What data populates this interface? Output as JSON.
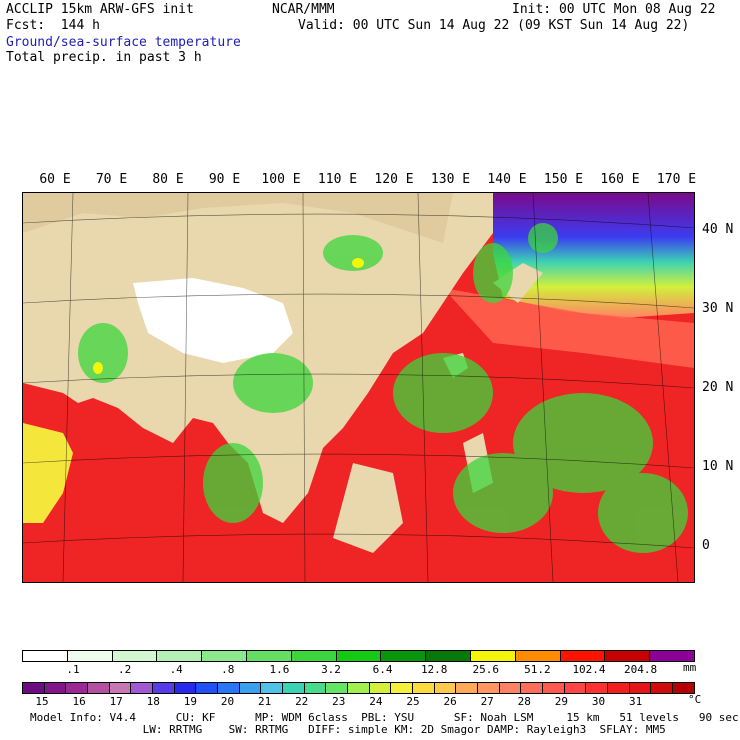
{
  "header": {
    "model_line": "ACCLIP 15km ARW-GFS init",
    "center": "NCAR/MMM",
    "init": "Init: 00 UTC Mon 08 Aug 22",
    "fcst": "Fcst:  144 h",
    "valid": "Valid: 00 UTC Sun 14 Aug 22 (09 KST Sun 14 Aug 22)",
    "field1": "Ground/sea-surface temperature",
    "field2": "Total precip. in past 3 h"
  },
  "axes": {
    "longitude_labels": [
      "60 E",
      "70 E",
      "80 E",
      "90 E",
      "100 E",
      "110 E",
      "120 E",
      "130 E",
      "140 E",
      "150 E",
      "160 E",
      "170 E"
    ],
    "latitude_labels": [
      "40 N",
      "30 N",
      "20 N",
      "10 N",
      "0"
    ]
  },
  "precip_scale": {
    "labels": [
      ".1",
      ".2",
      ".4",
      ".8",
      "1.6",
      "3.2",
      "6.4",
      "12.8",
      "25.6",
      "51.2",
      "102.4",
      "204.8"
    ],
    "unit": "mm",
    "colors": [
      "#ffffff",
      "#f0fbf0",
      "#d2f6d2",
      "#b4f0b4",
      "#8ce88c",
      "#64df64",
      "#3cd63c",
      "#14c814",
      "#0a960a",
      "#087808",
      "#f5f50a",
      "#ff8c00",
      "#ff1400",
      "#c80000",
      "#8c0096"
    ]
  },
  "temp_scale": {
    "labels": [
      "15",
      "16",
      "17",
      "18",
      "19",
      "20",
      "21",
      "22",
      "23",
      "24",
      "25",
      "26",
      "27",
      "28",
      "29",
      "30",
      "31"
    ],
    "unit": "°C",
    "colors": [
      "#6e0a82",
      "#82148c",
      "#9b2896",
      "#b450a0",
      "#c878b4",
      "#a05ad2",
      "#5a3ce6",
      "#2828f0",
      "#1e50f5",
      "#2878f5",
      "#3ca0f0",
      "#50c3e6",
      "#3cd2b4",
      "#46dc8c",
      "#64e664",
      "#a0f050",
      "#d2f03c",
      "#f5f03c",
      "#ffdc3c",
      "#ffc850",
      "#ffaa5a",
      "#ff9664",
      "#ff8264",
      "#ff6e5a",
      "#ff5a50",
      "#ff4646",
      "#ff3232",
      "#f51e1e",
      "#e61414",
      "#d20a0a",
      "#b40000"
    ]
  },
  "footer": {
    "line1": "Model Info: V4.4      CU: KF      MP: WDM 6class  PBL: YSU      SF: Noah LSM     15 km   51 levels   90 sec",
    "line2": "                 LW: RRTMG    SW: RRTMG   DIFF: simple KM: 2D Smagor DAMP: Rayleigh3  SFLAY: MM5"
  }
}
